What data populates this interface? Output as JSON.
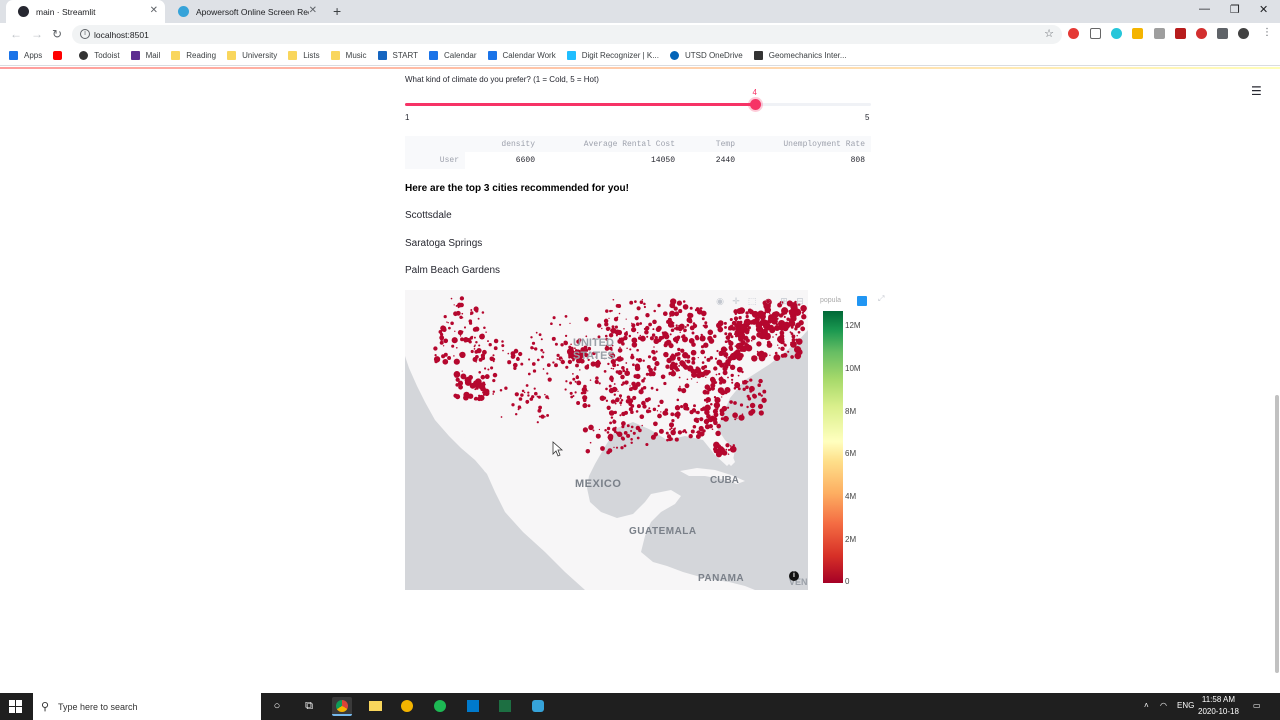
{
  "browser": {
    "tabs": [
      {
        "title": "main · Streamlit",
        "active": true
      },
      {
        "title": "Apowersoft Online Screen Recor",
        "active": false
      }
    ],
    "url": "localhost:8501",
    "bookmarks": [
      "Apps",
      "",
      "Todoist",
      "Mail",
      "Reading",
      "University",
      "Lists",
      "Music",
      "START",
      "Calendar",
      "Calendar Work",
      "Digit Recognizer | K...",
      "UTSD OneDrive",
      "Geomechanics Inter..."
    ]
  },
  "slider": {
    "label": "What kind of climate do you prefer? (1 = Cold, 5 = Hot)",
    "value": 4,
    "value_text": "4",
    "min": 1,
    "max": 5,
    "min_text": "1",
    "max_text": "5"
  },
  "dataframe": {
    "columns": [
      "density",
      "Average Rental Cost",
      "Temp",
      "Unemployment Rate"
    ],
    "rows": [
      {
        "index": "User",
        "values": [
          "6600",
          "14050",
          "2440",
          "808"
        ]
      }
    ]
  },
  "recommendation": {
    "heading": "Here are the top 3 cities recommended for you!",
    "cities": [
      "Scottsdale",
      "Saratoga Springs",
      "Palm Beach Gardens"
    ]
  },
  "map": {
    "labels": {
      "us1": "UNITED",
      "us2": "STATES",
      "mexico": "MEXICO",
      "cuba": "CUBA",
      "guatemala": "GUATEMALA",
      "panama": "PANAMA",
      "ven": "VEN"
    },
    "colorbar_title": "popula",
    "colorbar_ticks": [
      "12M",
      "10M",
      "8M",
      "6M",
      "4M",
      "2M",
      "0"
    ],
    "colors": {
      "point": "#b5072e",
      "land": "#f7f6f7",
      "water": "#d4d6da"
    }
  },
  "taskbar": {
    "search_placeholder": "Type here to search",
    "language": "ENG",
    "time": "11:58 AM",
    "date": "2020-10-18"
  }
}
